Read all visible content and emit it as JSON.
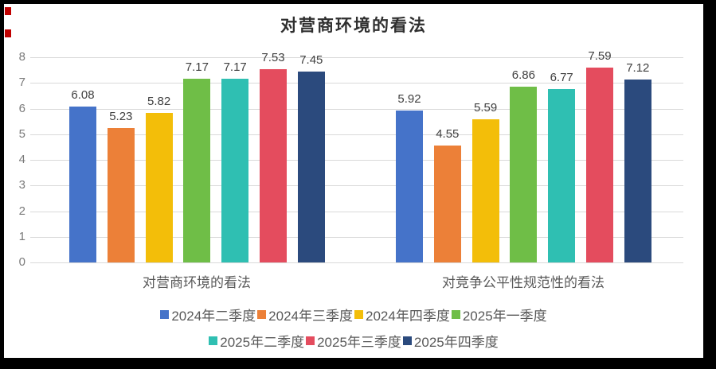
{
  "title": "对营商环境的看法",
  "chart_data": {
    "type": "bar",
    "title": "对营商环境的看法",
    "categories": [
      "对营商环境的看法",
      "对竞争公平性规范性的看法"
    ],
    "series": [
      {
        "name": "2024年二季度",
        "color": "#4573C9",
        "values": [
          6.08,
          5.92
        ]
      },
      {
        "name": "2024年三季度",
        "color": "#EC8038",
        "values": [
          5.23,
          4.55
        ]
      },
      {
        "name": "2024年四季度",
        "color": "#F3BE09",
        "values": [
          5.82,
          5.59
        ]
      },
      {
        "name": "2025年一季度",
        "color": "#6FBE47",
        "values": [
          7.17,
          6.86
        ]
      },
      {
        "name": "2025年二季度",
        "color": "#2FBFB2",
        "values": [
          7.17,
          6.77
        ]
      },
      {
        "name": "2025年三季度",
        "color": "#E44C5E",
        "values": [
          7.53,
          7.59
        ]
      },
      {
        "name": "2025年四季度",
        "color": "#2B4A7D",
        "values": [
          7.45,
          7.12
        ]
      }
    ],
    "value_labels": {
      "对营商环境的看法": [
        "6.08",
        "5.23",
        "5.82",
        "7.17",
        "7.17",
        "7.53",
        "7.45"
      ],
      "对竞争公平性规范性的看法": [
        "5.92",
        "4.55",
        "5.59",
        "6.86",
        "6.77",
        "7.59",
        "7.12"
      ]
    },
    "y_ticks": [
      0,
      1,
      2,
      3,
      4,
      5,
      6,
      7,
      8
    ],
    "ylim": [
      0,
      8
    ],
    "grid": true,
    "legend_position": "bottom",
    "legend_rows": [
      [
        0,
        1,
        2,
        3
      ],
      [
        4,
        5,
        6
      ]
    ],
    "gridline_color": "#d9d9d9",
    "label_color": "#3f3f3f",
    "axis_text_color": "#7a7a7a"
  }
}
